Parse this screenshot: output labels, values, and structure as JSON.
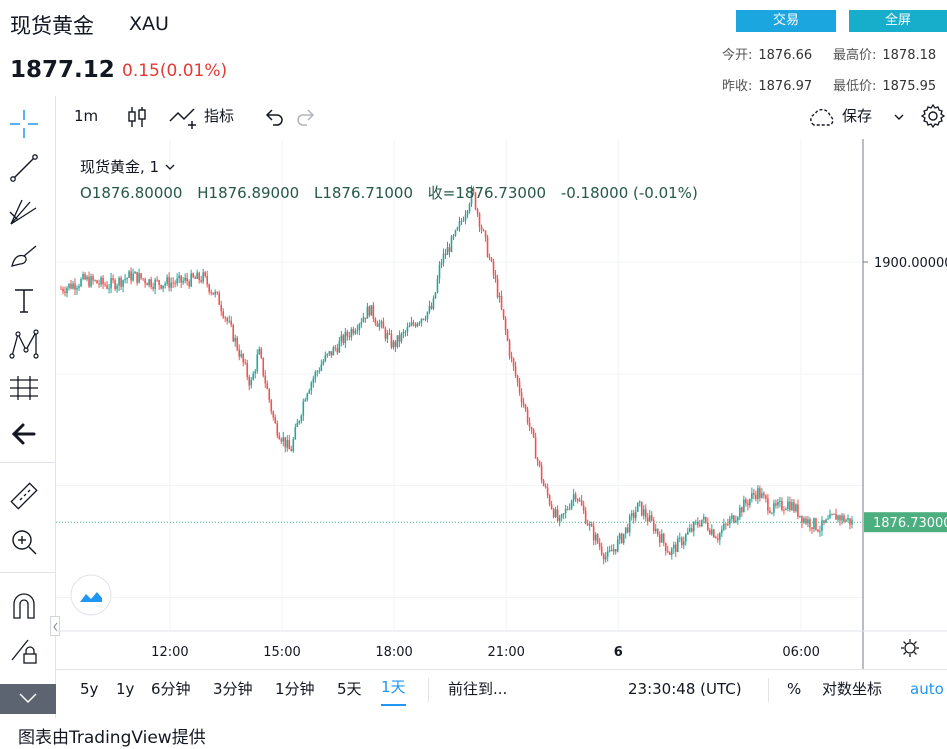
{
  "header": {
    "title": "现货黄金",
    "symbol": "XAU",
    "price": "1877.12",
    "change": "0.15(0.01%)",
    "trade_button": "交易",
    "fullscreen_button": "全屏",
    "stats": {
      "open_label": "今开:",
      "open": "1876.66",
      "high_label": "最高价:",
      "high": "1878.18",
      "prev_close_label": "昨收:",
      "prev_close": "1876.97",
      "low_label": "最低价:",
      "low": "1875.95"
    }
  },
  "toolbar": {
    "interval": "1m",
    "indicators": "指标",
    "save": "保存",
    "icons": [
      "candles-icon",
      "indicators-icon",
      "undo-icon",
      "redo-icon",
      "cloud-icon",
      "chevron-down-icon",
      "settings-icon"
    ]
  },
  "left_tools": [
    "crosshair-icon",
    "trend-line-icon",
    "fib-icon",
    "brush-icon",
    "text-icon",
    "pattern-icon",
    "measure-icon",
    "arrow-icon",
    "ruler-icon",
    "zoom-in-icon",
    "magnet-icon",
    "lock-pencil-icon",
    "trash-icon"
  ],
  "legend": {
    "name": "现货黄金, 1",
    "o": "O1876.80000",
    "h": "H1876.89000",
    "l": "L1876.71000",
    "c": "收=1876.73000",
    "chg": "-0.18000 (-0.01%)"
  },
  "chart_data": {
    "type": "candlestick",
    "x_ticks": [
      "12:00",
      "15:00",
      "18:00",
      "21:00",
      "6",
      "06:00"
    ],
    "y_ticks": [
      "1900.00000"
    ],
    "last_price_label": "1876.73000",
    "last_price": 1876.73,
    "colors": {
      "up": "#26a69a",
      "down": "#ef5350",
      "last": "#4caf80"
    },
    "path_points": [
      [
        0,
        1897.6
      ],
      [
        0.03,
        1898.4
      ],
      [
        0.06,
        1897.9
      ],
      [
        0.09,
        1898.8
      ],
      [
        0.12,
        1898.1
      ],
      [
        0.15,
        1898.2
      ],
      [
        0.18,
        1898.6
      ],
      [
        0.2,
        1896.5
      ],
      [
        0.22,
        1893.0
      ],
      [
        0.24,
        1889.0
      ],
      [
        0.25,
        1892.0
      ],
      [
        0.27,
        1885.5
      ],
      [
        0.29,
        1883.0
      ],
      [
        0.31,
        1888.5
      ],
      [
        0.33,
        1891.0
      ],
      [
        0.36,
        1893.3
      ],
      [
        0.39,
        1895.8
      ],
      [
        0.42,
        1892.5
      ],
      [
        0.45,
        1894.8
      ],
      [
        0.47,
        1895.9
      ],
      [
        0.48,
        1900.0
      ],
      [
        0.5,
        1902.5
      ],
      [
        0.52,
        1906.3
      ],
      [
        0.53,
        1903.5
      ],
      [
        0.55,
        1898.0
      ],
      [
        0.57,
        1891.0
      ],
      [
        0.59,
        1886.0
      ],
      [
        0.61,
        1880.0
      ],
      [
        0.63,
        1876.5
      ],
      [
        0.65,
        1879.5
      ],
      [
        0.67,
        1876.0
      ],
      [
        0.69,
        1873.5
      ],
      [
        0.71,
        1875.5
      ],
      [
        0.73,
        1878.2
      ],
      [
        0.75,
        1876.3
      ],
      [
        0.77,
        1874.0
      ],
      [
        0.79,
        1875.5
      ],
      [
        0.81,
        1877.0
      ],
      [
        0.83,
        1875.5
      ],
      [
        0.86,
        1878.0
      ],
      [
        0.88,
        1879.5
      ],
      [
        0.9,
        1877.8
      ],
      [
        0.92,
        1878.5
      ],
      [
        0.94,
        1877.0
      ],
      [
        0.96,
        1876.2
      ],
      [
        0.98,
        1877.3
      ],
      [
        1.0,
        1876.73
      ]
    ]
  },
  "bottom": {
    "ranges": [
      "5y",
      "1y",
      "6分钟",
      "3分钟",
      "1分钟",
      "5天",
      "1天"
    ],
    "active_range": "1天",
    "goto": "前往到...",
    "clock": "23:30:48 (UTC)",
    "percent": "%",
    "log": "对数坐标",
    "auto": "auto"
  },
  "credit": "图表由TradingView提供"
}
